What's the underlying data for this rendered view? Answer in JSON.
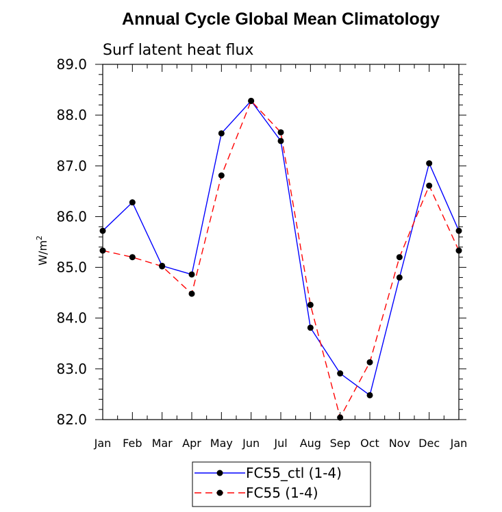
{
  "chart_data": {
    "type": "line",
    "title": "Annual Cycle Global Mean Climatology",
    "subtitle": "Surf latent heat flux",
    "ylabel": "W/m",
    "ylabel_superscript": "2",
    "xlabel": "",
    "categories": [
      "Jan",
      "Feb",
      "Mar",
      "Apr",
      "May",
      "Jun",
      "Jul",
      "Aug",
      "Sep",
      "Oct",
      "Nov",
      "Dec",
      "Jan"
    ],
    "ylim": [
      82.0,
      89.0
    ],
    "yticks": [
      "82.0",
      "83.0",
      "84.0",
      "85.0",
      "86.0",
      "87.0",
      "88.0",
      "89.0"
    ],
    "series": [
      {
        "name": "FC55_ctl (1-4)",
        "color": "#0000ff",
        "dash": "solid",
        "values": [
          85.72,
          86.28,
          85.03,
          84.86,
          87.64,
          88.28,
          87.49,
          83.81,
          82.91,
          82.48,
          84.8,
          87.05,
          85.72
        ]
      },
      {
        "name": "FC55 (1-4)",
        "color": "#ff0000",
        "dash": "dashed",
        "values": [
          85.33,
          85.2,
          85.02,
          84.48,
          86.81,
          88.28,
          87.66,
          84.26,
          82.04,
          83.13,
          85.2,
          86.61,
          85.33
        ]
      }
    ],
    "legend": {
      "position": "bottom-center",
      "entries": [
        "FC55_ctl (1-4)",
        "FC55 (1-4)"
      ]
    },
    "marker_color": "#000000"
  }
}
